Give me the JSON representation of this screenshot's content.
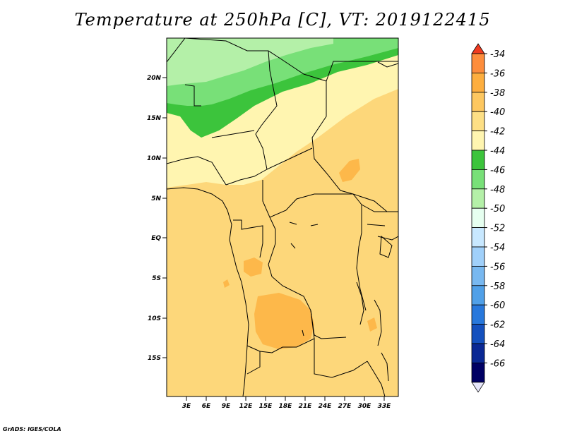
{
  "title": "Temperature at 250hPa [C], VT: 2019122415",
  "footer": "GrADS: IGES/COLA",
  "map": {
    "lat_labels": [
      "20N",
      "15N",
      "10N",
      "5N",
      "EQ",
      "5S",
      "10S",
      "15S"
    ],
    "lon_labels": [
      "3E",
      "6E",
      "9E",
      "12E",
      "15E",
      "18E",
      "21E",
      "24E",
      "27E",
      "30E",
      "33E"
    ]
  },
  "legend": {
    "levels": [
      "-34",
      "-36",
      "-38",
      "-40",
      "-42",
      "-44",
      "-46",
      "-48",
      "-50",
      "-52",
      "-54",
      "-56",
      "-58",
      "-60",
      "-62",
      "-64",
      "-66"
    ],
    "colors": [
      "#f03b20",
      "#fd8d3c",
      "#fdae3f",
      "#fdc760",
      "#fddf85",
      "#fff5b0",
      "#3cc43c",
      "#78e078",
      "#b4f0a8",
      "#e6fff0",
      "#c8e8ff",
      "#a0d0fa",
      "#78b8f0",
      "#50a0e8",
      "#2878dc",
      "#1450be",
      "#0a2894",
      "#000064",
      "#e6e6fa"
    ]
  }
}
